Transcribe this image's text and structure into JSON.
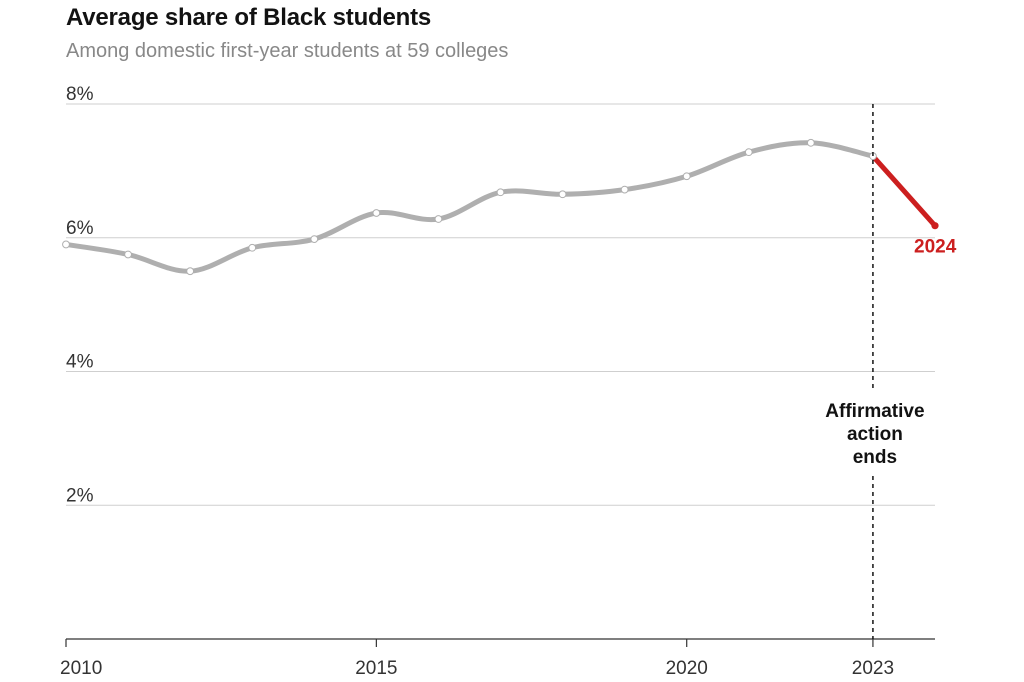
{
  "title": "Average share of Black students",
  "subtitle": "Among domestic first-year students at 59 colleges",
  "chart_data": {
    "type": "line",
    "title": "Average share of Black students",
    "subtitle": "Among domestic first-year students at 59 colleges",
    "xlabel": "",
    "ylabel": "",
    "x": [
      2010,
      2011,
      2012,
      2013,
      2014,
      2015,
      2016,
      2017,
      2018,
      2019,
      2020,
      2021,
      2022,
      2023,
      2024
    ],
    "series": [
      {
        "values": [
          5.9,
          5.75,
          5.5,
          5.85,
          5.98,
          6.37,
          6.28,
          6.68,
          6.65,
          6.72,
          6.92,
          7.28,
          7.42,
          7.22,
          6.18
        ],
        "color": "#afafaf",
        "highlight_color": "#cc1f1f"
      }
    ],
    "xlim": [
      2010,
      2024
    ],
    "ylim": [
      0,
      8
    ],
    "yticks": [
      2,
      4,
      6,
      8
    ],
    "ytick_labels": [
      "2%",
      "4%",
      "6%",
      "8%"
    ],
    "xticks": [
      2010,
      2015,
      2020,
      2023
    ],
    "xtick_labels": [
      "2010",
      "2015",
      "2020",
      "2023"
    ],
    "grid": true,
    "annotations": [
      {
        "text": [
          "Affirmative",
          "action",
          "ends"
        ],
        "x": 2023
      }
    ],
    "end_label": "2024"
  }
}
